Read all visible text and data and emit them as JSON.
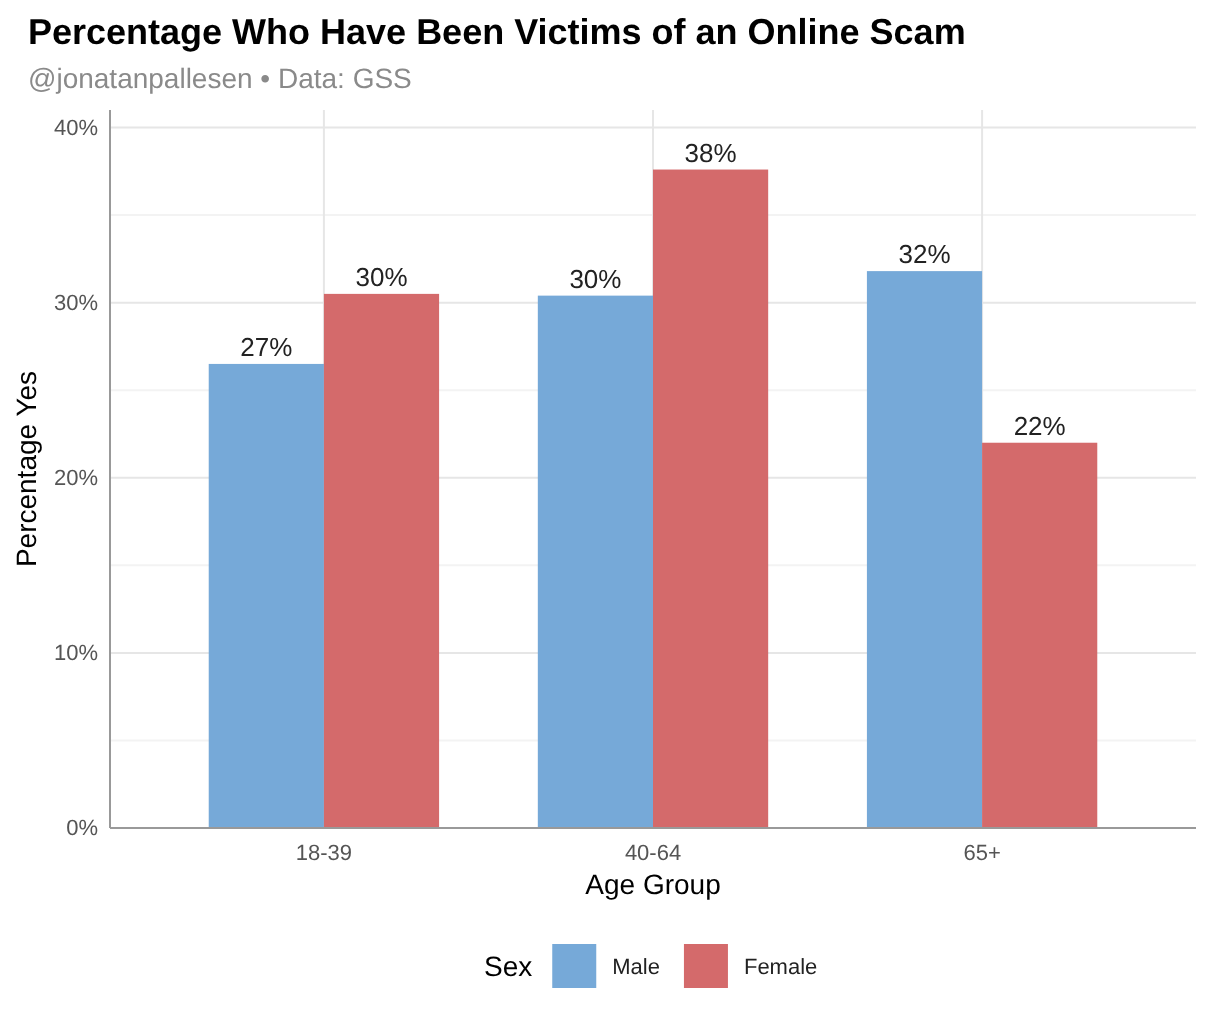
{
  "chart_data": {
    "type": "bar",
    "title": "Percentage Who Have Been Victims of an Online Scam",
    "subtitle": "@jonatanpallesen • Data: GSS",
    "xlabel": "Age Group",
    "ylabel": "Percentage Yes",
    "legend_title": "Sex",
    "categories": [
      "18-39",
      "40-64",
      "65+"
    ],
    "series": [
      {
        "name": "Male",
        "color": "#76a9d8",
        "values": [
          26.5,
          30.4,
          31.8
        ],
        "value_labels": [
          "27%",
          "30%",
          "32%"
        ]
      },
      {
        "name": "Female",
        "color": "#d46a6b",
        "values": [
          30.5,
          37.6,
          22.0
        ],
        "value_labels": [
          "30%",
          "38%",
          "22%"
        ]
      }
    ],
    "ylim": [
      0,
      41
    ],
    "yticks": [
      {
        "value": 0,
        "label": "0%"
      },
      {
        "value": 10,
        "label": "10%"
      },
      {
        "value": 20,
        "label": "20%"
      },
      {
        "value": 30,
        "label": "30%"
      },
      {
        "value": 40,
        "label": "40%"
      }
    ],
    "grid": true,
    "legend": "bottom"
  }
}
